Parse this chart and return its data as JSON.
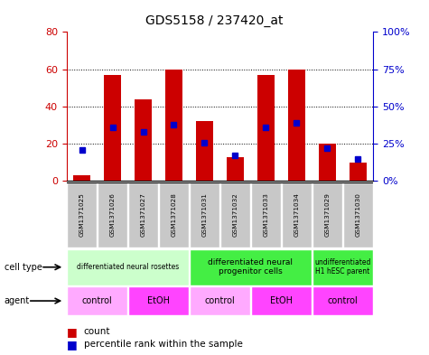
{
  "title": "GDS5158 / 237420_at",
  "samples": [
    "GSM1371025",
    "GSM1371026",
    "GSM1371027",
    "GSM1371028",
    "GSM1371031",
    "GSM1371032",
    "GSM1371033",
    "GSM1371034",
    "GSM1371029",
    "GSM1371030"
  ],
  "counts": [
    3,
    57,
    44,
    60,
    32,
    13,
    57,
    60,
    20,
    10
  ],
  "percentiles": [
    21,
    36,
    33,
    38,
    26,
    17,
    36,
    39,
    22,
    15
  ],
  "ylim_left": [
    0,
    80
  ],
  "ylim_right": [
    0,
    100
  ],
  "yticks_left": [
    0,
    20,
    40,
    60,
    80
  ],
  "yticks_right": [
    0,
    25,
    50,
    75,
    100
  ],
  "bar_color": "#cc0000",
  "dot_color": "#0000cc",
  "sample_bg_color": "#c8c8c8",
  "cell_type_groups": [
    {
      "label": "differentiated neural rosettes",
      "indices": [
        0,
        1,
        2,
        3
      ],
      "color": "#ccffcc",
      "fontsize": 5.5
    },
    {
      "label": "differentiated neural\nprogenitor cells",
      "indices": [
        4,
        5,
        6,
        7
      ],
      "color": "#44ee44",
      "fontsize": 6.5
    },
    {
      "label": "undifferentiated\nH1 hESC parent",
      "indices": [
        8,
        9
      ],
      "color": "#44ee44",
      "fontsize": 5.5
    }
  ],
  "agent_groups": [
    {
      "label": "control",
      "indices": [
        0,
        1
      ],
      "color": "#ffaaff"
    },
    {
      "label": "EtOH",
      "indices": [
        2,
        3
      ],
      "color": "#ff44ff"
    },
    {
      "label": "control",
      "indices": [
        4,
        5
      ],
      "color": "#ffaaff"
    },
    {
      "label": "EtOH",
      "indices": [
        6,
        7
      ],
      "color": "#ff44ff"
    },
    {
      "label": "control",
      "indices": [
        8,
        9
      ],
      "color": "#ff44ff"
    }
  ],
  "row_label_cell_type": "cell type",
  "row_label_agent": "agent",
  "legend_count_label": "count",
  "legend_percentile_label": "percentile rank within the sample",
  "tick_label_color_left": "#cc0000",
  "tick_label_color_right": "#0000cc"
}
